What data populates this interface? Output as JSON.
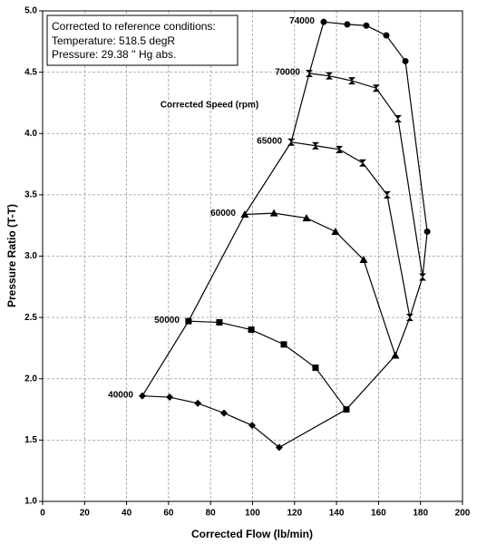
{
  "chart_data": {
    "type": "line",
    "xlabel": "Corrected Flow (lb/min)",
    "ylabel": "Pressure Ratio (T-T)",
    "annotation_box": [
      "Corrected to reference conditions:",
      "Temperature:  518.5 degR",
      "Pressure:  29.38 '' Hg abs."
    ],
    "annotation": "Corrected Speed (rpm)",
    "xlim": [
      0,
      200
    ],
    "ylim": [
      1.0,
      5.0
    ],
    "xticks": [
      0,
      20,
      40,
      60,
      80,
      100,
      120,
      140,
      160,
      180,
      200
    ],
    "yticks": [
      {
        "value": 1.0,
        "label": "1.0"
      },
      1.5,
      {
        "value": 2.0,
        "label": "2.0"
      },
      2.5,
      {
        "value": 3.0,
        "label": "3.0"
      },
      3.5,
      {
        "value": 4.0,
        "label": "4.0"
      },
      4.5,
      {
        "value": 5.0,
        "label": "5.0"
      }
    ],
    "grid": true,
    "color": "#000000",
    "series": [
      {
        "name": "40000",
        "marker": "diamond",
        "x": [
          47.5,
          60.5,
          73.9,
          86.4,
          99.8,
          112.7
        ],
        "values": [
          1.86,
          1.85,
          1.8,
          1.72,
          1.62,
          1.44
        ]
      },
      {
        "name": "50000",
        "marker": "square",
        "x": [
          69.5,
          84.2,
          99.4,
          114.9,
          130,
          144.7
        ],
        "values": [
          2.47,
          2.46,
          2.4,
          2.28,
          2.09,
          1.75
        ]
      },
      {
        "name": "60000",
        "marker": "triangle",
        "x": [
          96.3,
          110.2,
          125.7,
          139.5,
          152.9,
          168
        ],
        "values": [
          3.34,
          3.35,
          3.31,
          3.2,
          2.97,
          2.19
        ]
      },
      {
        "name": "65000",
        "marker": "hourglass",
        "x": [
          118.4,
          130,
          141.3,
          152.5,
          164.1,
          174.9
        ],
        "values": [
          3.93,
          3.9,
          3.87,
          3.76,
          3.5,
          2.5
        ]
      },
      {
        "name": "70000",
        "marker": "hourglass",
        "x": [
          127,
          136.5,
          147.3,
          158.9,
          169.3,
          181
        ],
        "values": [
          4.49,
          4.47,
          4.43,
          4.37,
          4.12,
          2.83
        ]
      },
      {
        "name": "74000",
        "marker": "circle",
        "x": [
          133.9,
          145.1,
          154.2,
          163.7,
          172.8,
          183.2
        ],
        "values": [
          4.91,
          4.89,
          4.88,
          4.8,
          4.59,
          3.2
        ]
      }
    ]
  }
}
